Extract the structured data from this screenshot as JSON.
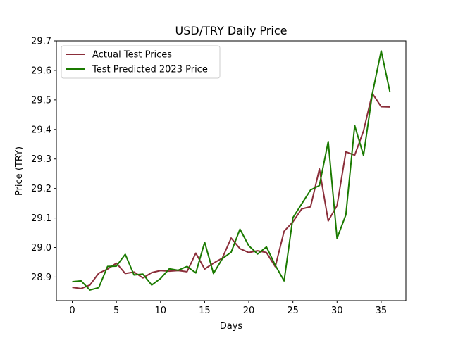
{
  "chart_data": {
    "type": "line",
    "title": "USD/TRY Daily Price",
    "xlabel": "Days",
    "ylabel": "Price (TRY)",
    "xlim": [
      -1.8,
      37.8
    ],
    "ylim": [
      28.82,
      29.7
    ],
    "xticks": [
      0,
      5,
      10,
      15,
      20,
      25,
      30,
      35
    ],
    "yticks": [
      28.9,
      29.0,
      29.1,
      29.2,
      29.3,
      29.4,
      29.5,
      29.6,
      29.7
    ],
    "ytick_labels": [
      "28.9",
      "29.0",
      "29.1",
      "29.2",
      "29.3",
      "29.4",
      "29.5",
      "29.6",
      "29.7"
    ],
    "grid": false,
    "legend_position": "top-left",
    "x": [
      0,
      1,
      2,
      3,
      4,
      5,
      6,
      7,
      8,
      9,
      10,
      11,
      12,
      13,
      14,
      15,
      16,
      17,
      18,
      19,
      20,
      21,
      22,
      23,
      24,
      25,
      26,
      27,
      28,
      29,
      30,
      31,
      32,
      33,
      34,
      35,
      36
    ],
    "series": [
      {
        "name": "Actual Test Prices",
        "color": "#8b2e3a",
        "values": [
          28.865,
          28.861,
          28.873,
          28.913,
          28.927,
          28.947,
          28.912,
          28.917,
          28.897,
          28.915,
          28.922,
          28.92,
          28.922,
          28.918,
          28.981,
          28.927,
          28.947,
          28.964,
          29.032,
          28.996,
          28.983,
          28.989,
          28.983,
          28.935,
          29.055,
          29.087,
          29.131,
          29.138,
          29.266,
          29.09,
          29.142,
          29.324,
          29.313,
          29.395,
          29.522,
          29.477,
          29.476
        ]
      },
      {
        "name": "Test Predicted 2023 Price",
        "color": "#1a7a00",
        "values": [
          28.884,
          28.887,
          28.856,
          28.864,
          28.936,
          28.937,
          28.977,
          28.907,
          28.91,
          28.873,
          28.895,
          28.928,
          28.923,
          28.936,
          28.914,
          29.018,
          28.912,
          28.962,
          28.984,
          29.062,
          29.006,
          28.978,
          29.002,
          28.94,
          28.887,
          29.101,
          29.148,
          29.195,
          29.21,
          29.359,
          29.031,
          29.111,
          29.413,
          29.312,
          29.521,
          29.666,
          29.526
        ]
      }
    ]
  }
}
